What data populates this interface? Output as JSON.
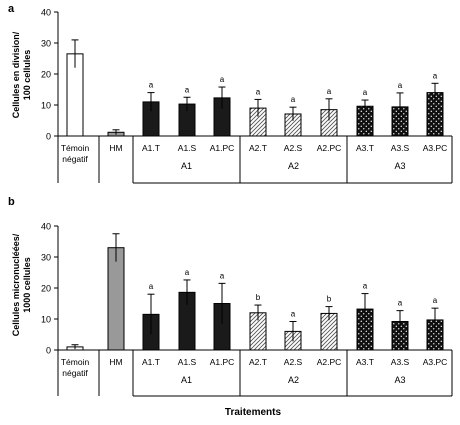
{
  "figure": {
    "xlabel": "Traitements"
  },
  "chart_data": [
    {
      "panel": "a",
      "type": "bar",
      "ylabel": [
        "Cellules en division/",
        "100 cellules"
      ],
      "ylim": [
        0,
        40
      ],
      "yticks": [
        0,
        10,
        20,
        30,
        40
      ],
      "categories": [
        "Témoin négatif",
        "HM",
        "A1.T",
        "A1.S",
        "A1.PC",
        "A2.T",
        "A2.S",
        "A2.PC",
        "A3.T",
        "A3.S",
        "A3.PC"
      ],
      "category_lines": [
        [
          "Témoin",
          "négatif"
        ],
        [
          "HM"
        ],
        [
          "A1.T"
        ],
        [
          "A1.S"
        ],
        [
          "A1.PC"
        ],
        [
          "A2.T"
        ],
        [
          "A2.S"
        ],
        [
          "A2.PC"
        ],
        [
          "A3.T"
        ],
        [
          "A3.S"
        ],
        [
          "A3.PC"
        ]
      ],
      "values": [
        26.5,
        1.2,
        11,
        10.3,
        12.3,
        9,
        7.1,
        8.5,
        9.6,
        9.4,
        14
      ],
      "errors": [
        4.5,
        0.8,
        3,
        2.2,
        3.5,
        2.8,
        2.2,
        3.5,
        2,
        4.5,
        3
      ],
      "significance": [
        "",
        "",
        "a",
        "a",
        "a",
        "a",
        "a",
        "a",
        "a",
        "a",
        "a"
      ],
      "fills": [
        "open",
        "gray",
        "black",
        "black",
        "black",
        "hatch",
        "hatch",
        "hatch",
        "dots",
        "dots",
        "dots"
      ],
      "groups": [
        {
          "label": "A1",
          "from": 2,
          "to": 4
        },
        {
          "label": "A2",
          "from": 5,
          "to": 7
        },
        {
          "label": "A3",
          "from": 8,
          "to": 10
        }
      ]
    },
    {
      "panel": "b",
      "type": "bar",
      "ylabel": [
        "Cellules micronucléées/",
        "1000 cellules"
      ],
      "ylim": [
        0,
        40
      ],
      "yticks": [
        0,
        10,
        20,
        30,
        40
      ],
      "categories": [
        "Témoin négatif",
        "HM",
        "A1.T",
        "A1.S",
        "A1.PC",
        "A2.T",
        "A2.S",
        "A2.PC",
        "A3.T",
        "A3.S",
        "A3.PC"
      ],
      "category_lines": [
        [
          "Témoin",
          "négatif"
        ],
        [
          "HM"
        ],
        [
          "A1.T"
        ],
        [
          "A1.S"
        ],
        [
          "A1.PC"
        ],
        [
          "A2.T"
        ],
        [
          "A2.S"
        ],
        [
          "A2.PC"
        ],
        [
          "A3.T"
        ],
        [
          "A3.S"
        ],
        [
          "A3.PC"
        ]
      ],
      "values": [
        1,
        33,
        11.5,
        18.6,
        15,
        12,
        6,
        11.8,
        13.2,
        9.2,
        9.7
      ],
      "errors": [
        0.7,
        4.5,
        6.5,
        4,
        6.5,
        2.5,
        3.2,
        2.2,
        5,
        3.5,
        3.8
      ],
      "significance": [
        "",
        "",
        "a",
        "a",
        "a",
        "b",
        "a",
        "b",
        "a",
        "a",
        "a"
      ],
      "fills": [
        "open",
        "gray",
        "black",
        "black",
        "black",
        "hatch",
        "hatch",
        "hatch",
        "dots",
        "dots",
        "dots"
      ],
      "groups": [
        {
          "label": "A1",
          "from": 2,
          "to": 4
        },
        {
          "label": "A2",
          "from": 5,
          "to": 7
        },
        {
          "label": "A3",
          "from": 8,
          "to": 10
        }
      ]
    }
  ]
}
